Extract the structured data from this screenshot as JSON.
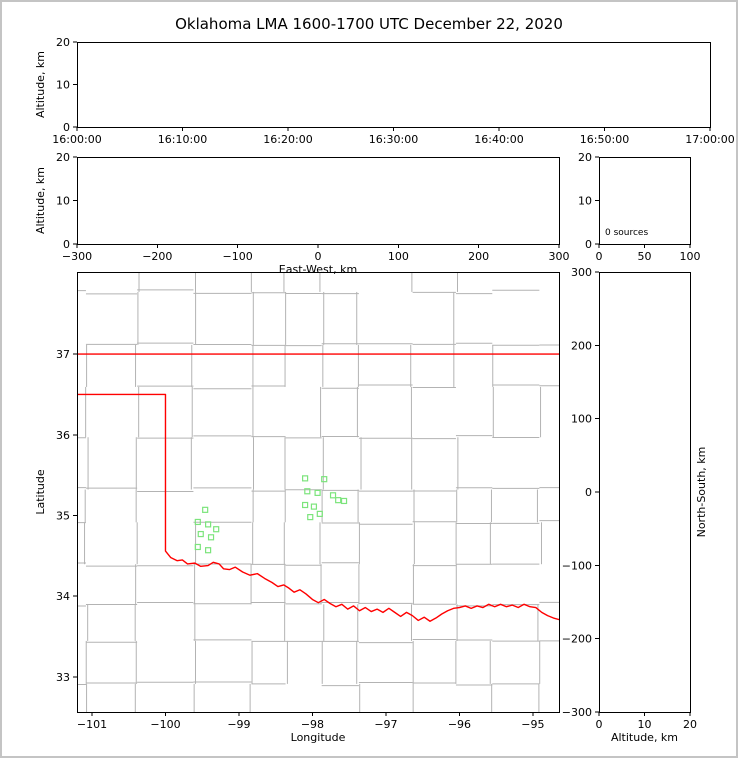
{
  "title": "Oklahoma LMA 1600-1700 UTC December 22, 2020",
  "colors": {
    "frame": "#000000",
    "background": "#ffffff",
    "page_border": "#c4c4c4",
    "state_border": "#ff0000",
    "county_line": "#b3b3b3",
    "source_marker": "#7ce47c"
  },
  "chart_data": [
    {
      "id": "time_height",
      "type": "scatter",
      "xlabel": "",
      "ylabel": "Altitude, km",
      "xtick_labels": [
        "16:00:00",
        "16:10:00",
        "16:20:00",
        "16:30:00",
        "16:40:00",
        "16:50:00",
        "17:00:00"
      ],
      "ylim": [
        0,
        20
      ],
      "yticks": [
        0,
        10,
        20
      ],
      "points": []
    },
    {
      "id": "ew_height",
      "type": "scatter",
      "xlabel": "East-West, km",
      "ylabel": "Altitude, km",
      "xlim": [
        -300,
        300
      ],
      "xticks": [
        -300,
        -200,
        -100,
        0,
        100,
        200,
        300
      ],
      "ylim": [
        0,
        20
      ],
      "yticks": [
        0,
        10,
        20
      ],
      "points": []
    },
    {
      "id": "alt_hist",
      "type": "scatter",
      "annotation": "0 sources",
      "xlim": [
        0,
        100
      ],
      "xticks": [
        0,
        50,
        100
      ],
      "ylim": [
        0,
        20
      ],
      "yticks": [
        0,
        10,
        20
      ],
      "points": []
    },
    {
      "id": "map",
      "type": "scatter",
      "xlabel": "Longitude",
      "ylabel": "Latitude",
      "xlim": [
        -101.204,
        -94.645
      ],
      "xticks": [
        -101,
        -100,
        -99,
        -98,
        -97,
        -96,
        -95
      ],
      "ylim": [
        32.566,
        38.016
      ],
      "yticks": [
        33,
        34,
        35,
        36,
        37
      ],
      "points": [
        [
          -98.1,
          35.46
        ],
        [
          -97.84,
          35.45
        ],
        [
          -98.07,
          35.3
        ],
        [
          -97.93,
          35.28
        ],
        [
          -97.72,
          35.25
        ],
        [
          -98.1,
          35.13
        ],
        [
          -97.98,
          35.11
        ],
        [
          -97.65,
          35.19
        ],
        [
          -97.57,
          35.18
        ],
        [
          -97.9,
          35.02
        ],
        [
          -98.03,
          34.98
        ],
        [
          -99.46,
          35.07
        ],
        [
          -99.56,
          34.92
        ],
        [
          -99.42,
          34.89
        ],
        [
          -99.52,
          34.77
        ],
        [
          -99.38,
          34.73
        ],
        [
          -99.56,
          34.61
        ],
        [
          -99.42,
          34.57
        ],
        [
          -99.31,
          34.83
        ]
      ],
      "state_border": [
        [
          [
            -101.204,
            37.0
          ],
          [
            -94.645,
            37.0
          ]
        ],
        [
          [
            -101.204,
            36.5
          ],
          [
            -100.0,
            36.5
          ],
          [
            -100.0,
            34.56
          ],
          [
            -99.93,
            34.48
          ],
          [
            -99.84,
            34.44
          ],
          [
            -99.77,
            34.45
          ],
          [
            -99.7,
            34.4
          ],
          [
            -99.6,
            34.41
          ],
          [
            -99.52,
            34.37
          ],
          [
            -99.42,
            34.38
          ],
          [
            -99.35,
            34.42
          ],
          [
            -99.27,
            34.4
          ],
          [
            -99.21,
            34.34
          ],
          [
            -99.13,
            34.33
          ],
          [
            -99.05,
            34.36
          ],
          [
            -98.95,
            34.3
          ],
          [
            -98.85,
            34.26
          ],
          [
            -98.75,
            34.28
          ],
          [
            -98.65,
            34.22
          ],
          [
            -98.55,
            34.17
          ],
          [
            -98.47,
            34.12
          ],
          [
            -98.39,
            34.14
          ],
          [
            -98.32,
            34.1
          ],
          [
            -98.25,
            34.05
          ],
          [
            -98.17,
            34.08
          ],
          [
            -98.09,
            34.03
          ],
          [
            -98.0,
            33.96
          ],
          [
            -97.92,
            33.92
          ],
          [
            -97.84,
            33.96
          ],
          [
            -97.76,
            33.91
          ],
          [
            -97.68,
            33.87
          ],
          [
            -97.6,
            33.9
          ],
          [
            -97.52,
            33.84
          ],
          [
            -97.44,
            33.88
          ],
          [
            -97.36,
            33.82
          ],
          [
            -97.28,
            33.86
          ],
          [
            -97.2,
            33.81
          ],
          [
            -97.12,
            33.84
          ],
          [
            -97.04,
            33.8
          ],
          [
            -96.96,
            33.85
          ],
          [
            -96.88,
            33.8
          ],
          [
            -96.8,
            33.75
          ],
          [
            -96.72,
            33.8
          ],
          [
            -96.64,
            33.76
          ],
          [
            -96.56,
            33.7
          ],
          [
            -96.48,
            33.74
          ],
          [
            -96.4,
            33.69
          ],
          [
            -96.32,
            33.73
          ],
          [
            -96.24,
            33.78
          ],
          [
            -96.16,
            33.82
          ],
          [
            -96.08,
            33.85
          ],
          [
            -96.0,
            33.86
          ],
          [
            -95.92,
            33.88
          ],
          [
            -95.84,
            33.85
          ],
          [
            -95.76,
            33.88
          ],
          [
            -95.68,
            33.86
          ],
          [
            -95.6,
            33.9
          ],
          [
            -95.52,
            33.87
          ],
          [
            -95.44,
            33.9
          ],
          [
            -95.36,
            33.87
          ],
          [
            -95.28,
            33.89
          ],
          [
            -95.2,
            33.86
          ],
          [
            -95.12,
            33.9
          ],
          [
            -95.04,
            33.87
          ],
          [
            -94.96,
            33.86
          ],
          [
            -94.88,
            33.8
          ],
          [
            -94.8,
            33.76
          ],
          [
            -94.72,
            33.73
          ],
          [
            -94.6,
            33.7
          ]
        ]
      ]
    },
    {
      "id": "ns_height",
      "type": "scatter",
      "xlabel": "Altitude, km",
      "ylabel_right": "North-South, km",
      "xlim": [
        0,
        20
      ],
      "xticks": [
        0,
        10,
        20
      ],
      "ylim": [
        -300,
        300
      ],
      "yticks": [
        -300,
        -200,
        -100,
        0,
        100,
        200,
        300
      ],
      "points": []
    }
  ]
}
